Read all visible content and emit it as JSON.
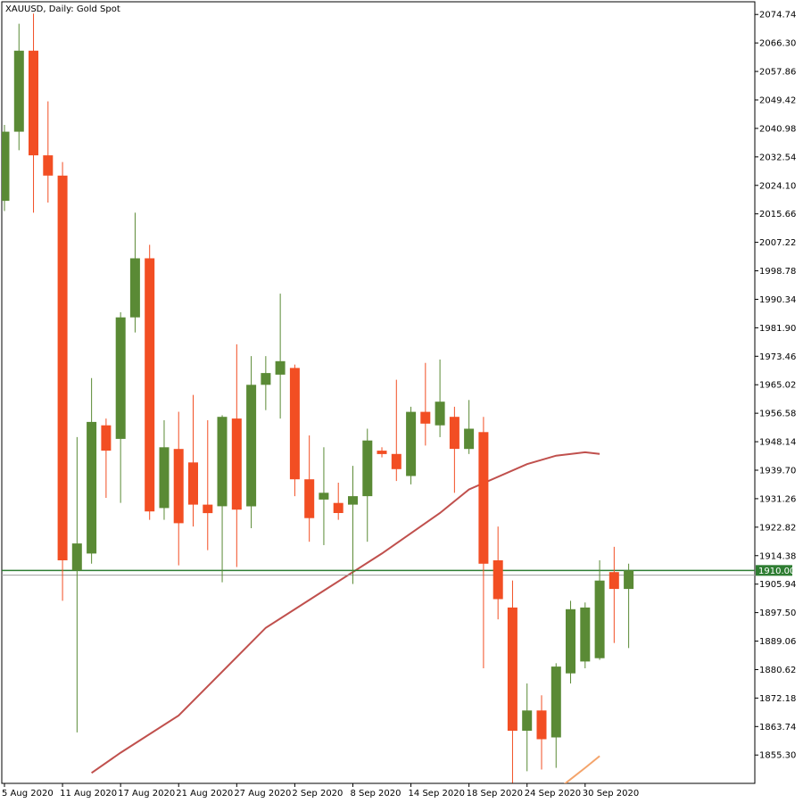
{
  "chart_data": {
    "type": "candlestick",
    "title": "XAUUSD, Daily:  Gold Spot",
    "y_ticks": [
      1855.3,
      1863.74,
      1872.18,
      1880.62,
      1889.06,
      1897.5,
      1905.94,
      1914.38,
      1922.82,
      1931.26,
      1939.7,
      1948.14,
      1956.58,
      1965.02,
      1973.46,
      1981.9,
      1990.34,
      1998.78,
      2007.22,
      2015.66,
      2024.1,
      2032.54,
      2040.98,
      2049.42,
      2057.86,
      2066.3,
      2074.74
    ],
    "y_tick_labels": [
      "1855.30",
      "1863.74",
      "1872.18",
      "1880.62",
      "1889.06",
      "1897.50",
      "1905.94",
      "1914.38",
      "1922.82",
      "1931.26",
      "1939.70",
      "1948.14",
      "1956.58",
      "1965.02",
      "1973.46",
      "1981.90",
      "1990.34",
      "1998.78",
      "2007.22",
      "2015.66",
      "2024.10",
      "2032.54",
      "2040.98",
      "2049.42",
      "2057.86",
      "2066.30",
      "2074.74"
    ],
    "ylim": [
      1846.9,
      2078.5
    ],
    "x_labels": [
      {
        "label": "5 Aug 2020",
        "index": 0
      },
      {
        "label": "11 Aug 2020",
        "index": 4
      },
      {
        "label": "17 Aug 2020",
        "index": 8
      },
      {
        "label": "21 Aug 2020",
        "index": 12
      },
      {
        "label": "27 Aug 2020",
        "index": 16
      },
      {
        "label": "2 Sep 2020",
        "index": 20
      },
      {
        "label": "8 Sep 2020",
        "index": 24
      },
      {
        "label": "14 Sep 2020",
        "index": 28
      },
      {
        "label": "18 Sep 2020",
        "index": 32
      },
      {
        "label": "24 Sep 2020",
        "index": 36
      },
      {
        "label": "30 Sep 2020",
        "index": 40
      }
    ],
    "candles": [
      {
        "o": 2019.5,
        "h": 2042.0,
        "l": 2016.5,
        "c": 2040.0
      },
      {
        "o": 2040.0,
        "h": 2072.0,
        "l": 2034.5,
        "c": 2064.0
      },
      {
        "o": 2064.0,
        "h": 2075.0,
        "l": 2016.0,
        "c": 2033.0
      },
      {
        "o": 2033.0,
        "h": 2049.0,
        "l": 2019.0,
        "c": 2027.0
      },
      {
        "o": 2027.0,
        "h": 2031.0,
        "l": 1901.0,
        "c": 1913.0
      },
      {
        "o": 1910.0,
        "h": 1949.5,
        "l": 1862.0,
        "c": 1918.0
      },
      {
        "o": 1915.0,
        "h": 1967.0,
        "l": 1912.0,
        "c": 1954.0
      },
      {
        "o": 1953.0,
        "h": 1955.0,
        "l": 1931.5,
        "c": 1945.5
      },
      {
        "o": 1949.0,
        "h": 1986.5,
        "l": 1930.0,
        "c": 1985.0
      },
      {
        "o": 1985.0,
        "h": 2016.0,
        "l": 1980.5,
        "c": 2002.5
      },
      {
        "o": 2002.5,
        "h": 2006.5,
        "l": 1925.0,
        "c": 1927.5
      },
      {
        "o": 1928.5,
        "h": 1954.5,
        "l": 1925.0,
        "c": 1946.5
      },
      {
        "o": 1946.0,
        "h": 1957.0,
        "l": 1911.5,
        "c": 1924.0
      },
      {
        "o": 1942.0,
        "h": 1962.0,
        "l": 1923.0,
        "c": 1929.5
      },
      {
        "o": 1929.5,
        "h": 1954.5,
        "l": 1916.0,
        "c": 1927.0
      },
      {
        "o": 1929.0,
        "h": 1956.0,
        "l": 1906.5,
        "c": 1955.5
      },
      {
        "o": 1955.0,
        "h": 1977.0,
        "l": 1911.0,
        "c": 1928.0
      },
      {
        "o": 1929.0,
        "h": 1973.5,
        "l": 1922.5,
        "c": 1965.0
      },
      {
        "o": 1965.0,
        "h": 1973.5,
        "l": 1957.5,
        "c": 1968.5
      },
      {
        "o": 1968.0,
        "h": 1992.0,
        "l": 1955.0,
        "c": 1972.0
      },
      {
        "o": 1970.0,
        "h": 1971.0,
        "l": 1932.0,
        "c": 1937.0
      },
      {
        "o": 1937.0,
        "h": 1950.0,
        "l": 1918.5,
        "c": 1925.5
      },
      {
        "o": 1931.0,
        "h": 1946.5,
        "l": 1917.5,
        "c": 1933.0
      },
      {
        "o": 1930.0,
        "h": 1936.0,
        "l": 1925.0,
        "c": 1927.0
      },
      {
        "o": 1929.5,
        "h": 1941.0,
        "l": 1906.0,
        "c": 1932.0
      },
      {
        "o": 1932.0,
        "h": 1952.0,
        "l": 1918.5,
        "c": 1948.5
      },
      {
        "o": 1945.5,
        "h": 1946.5,
        "l": 1943.5,
        "c": 1944.5
      },
      {
        "o": 1944.5,
        "h": 1966.5,
        "l": 1936.5,
        "c": 1940.0
      },
      {
        "o": 1938.0,
        "h": 1958.5,
        "l": 1935.5,
        "c": 1957.0
      },
      {
        "o": 1957.0,
        "h": 1971.5,
        "l": 1947.0,
        "c": 1953.5
      },
      {
        "o": 1953.0,
        "h": 1972.5,
        "l": 1949.5,
        "c": 1960.0
      },
      {
        "o": 1955.5,
        "h": 1958.5,
        "l": 1933.0,
        "c": 1946.0
      },
      {
        "o": 1946.0,
        "h": 1960.5,
        "l": 1944.5,
        "c": 1952.0
      },
      {
        "o": 1951.0,
        "h": 1955.5,
        "l": 1881.0,
        "c": 1912.0
      },
      {
        "o": 1913.0,
        "h": 1923.0,
        "l": 1895.5,
        "c": 1901.5
      },
      {
        "o": 1899.0,
        "h": 1907.0,
        "l": 1847.0,
        "c": 1862.5
      },
      {
        "o": 1862.5,
        "h": 1876.5,
        "l": 1850.5,
        "c": 1868.5
      },
      {
        "o": 1868.5,
        "h": 1873.0,
        "l": 1851.0,
        "c": 1860.0
      },
      {
        "o": 1860.5,
        "h": 1882.5,
        "l": 1851.5,
        "c": 1881.5
      },
      {
        "o": 1879.5,
        "h": 1901.0,
        "l": 1876.5,
        "c": 1898.5
      },
      {
        "o": 1883.0,
        "h": 1900.5,
        "l": 1881.0,
        "c": 1899.0
      },
      {
        "o": 1884.0,
        "h": 1913.0,
        "l": 1883.5,
        "c": 1907.0
      },
      {
        "o": 1909.5,
        "h": 1917.0,
        "l": 1888.5,
        "c": 1904.5
      },
      {
        "o": 1904.5,
        "h": 1912.0,
        "l": 1887.0,
        "c": 1910.0
      }
    ],
    "ma_slow": [
      [
        35,
        1830.0
      ],
      [
        36,
        1838.0
      ],
      [
        40,
        1851.5
      ],
      [
        41,
        1855.0
      ]
    ],
    "ma_mid": [
      [
        6,
        1850.0
      ],
      [
        8,
        1856.0
      ],
      [
        12,
        1867.0
      ],
      [
        18,
        1893.0
      ],
      [
        22,
        1904.0
      ],
      [
        26,
        1915.0
      ],
      [
        30,
        1927.0
      ],
      [
        32,
        1934.0
      ],
      [
        36,
        1941.5
      ],
      [
        38,
        1944.0
      ],
      [
        40,
        1945.0
      ],
      [
        41,
        1944.5
      ]
    ],
    "hlines": [
      1910.0,
      1908.6
    ],
    "price_label": "1910.00",
    "colors": {
      "bull": "#5a8a35",
      "bear": "#f24e23",
      "bull_wick": "#5a8a35",
      "bear_wick": "#f24e23",
      "ma_mid": "#c0504d",
      "ma_slow": "#f4a46b",
      "hline_main": "#2e7d32",
      "hline_alt": "#9e9e9e",
      "label_bg": "#2e7d32",
      "label_fg": "#ffffff"
    },
    "grid": false,
    "legend": "none"
  }
}
